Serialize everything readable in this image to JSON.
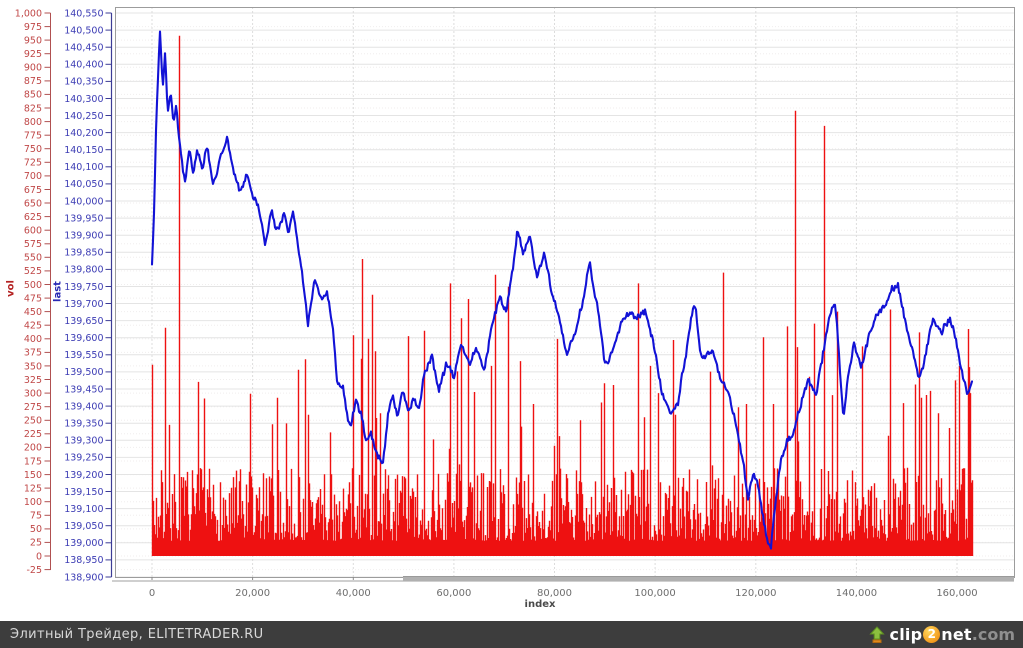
{
  "chart_data": {
    "type": "line+bar",
    "x_axis": {
      "title": "index",
      "ticks": [
        0,
        20000,
        40000,
        60000,
        80000,
        100000,
        120000,
        140000,
        160000
      ],
      "range": [
        -7300,
        171500
      ],
      "data_range": [
        0,
        163000
      ]
    },
    "left_axis_vol": {
      "title": "vol",
      "range": [
        -25,
        1000
      ],
      "ticks": [
        1000,
        975,
        950,
        925,
        900,
        875,
        850,
        825,
        800,
        775,
        750,
        725,
        700,
        675,
        650,
        625,
        600,
        575,
        550,
        525,
        500,
        475,
        450,
        425,
        400,
        375,
        350,
        325,
        300,
        275,
        250,
        225,
        200,
        175,
        150,
        125,
        100,
        75,
        50,
        25,
        0,
        -25
      ]
    },
    "left_axis_last": {
      "title": "last",
      "range": [
        138900,
        140550
      ],
      "ticks": [
        140550,
        140500,
        140450,
        140400,
        140350,
        140300,
        140250,
        140200,
        140150,
        140100,
        140050,
        140000,
        139950,
        139900,
        139850,
        139800,
        139750,
        139700,
        139650,
        139600,
        139550,
        139500,
        139450,
        139400,
        139350,
        139300,
        139250,
        139200,
        139150,
        139100,
        139050,
        139000,
        138950,
        138900
      ]
    },
    "grid": true,
    "legend": "none",
    "series": [
      {
        "name": "last",
        "type": "line",
        "color": "#1212d6",
        "axis": "last",
        "anchors": [
          [
            0,
            139820
          ],
          [
            400,
            139960
          ],
          [
            900,
            140260
          ],
          [
            1600,
            140490
          ],
          [
            2100,
            140330
          ],
          [
            2600,
            140420
          ],
          [
            3100,
            140250
          ],
          [
            3700,
            140300
          ],
          [
            4300,
            140210
          ],
          [
            4800,
            140270
          ],
          [
            5400,
            140160
          ],
          [
            6000,
            140080
          ],
          [
            6600,
            140030
          ],
          [
            7400,
            140130
          ],
          [
            8200,
            140050
          ],
          [
            9000,
            140120
          ],
          [
            10000,
            140070
          ],
          [
            11000,
            140140
          ],
          [
            12000,
            140040
          ],
          [
            13500,
            140110
          ],
          [
            14900,
            140175
          ],
          [
            16300,
            140100
          ],
          [
            17500,
            140050
          ],
          [
            18800,
            140105
          ],
          [
            20000,
            140020
          ],
          [
            21200,
            139980
          ],
          [
            22500,
            139855
          ],
          [
            23800,
            139960
          ],
          [
            25000,
            139900
          ],
          [
            26200,
            139935
          ],
          [
            27200,
            139880
          ],
          [
            28000,
            139950
          ],
          [
            29000,
            139860
          ],
          [
            29800,
            139805
          ],
          [
            31000,
            139645
          ],
          [
            32400,
            139790
          ],
          [
            33600,
            139715
          ],
          [
            34800,
            139725
          ],
          [
            36000,
            139640
          ],
          [
            36800,
            139500
          ],
          [
            38000,
            139480
          ],
          [
            38800,
            139390
          ],
          [
            39500,
            139340
          ],
          [
            40500,
            139420
          ],
          [
            41500,
            139390
          ],
          [
            42500,
            139310
          ],
          [
            43500,
            139350
          ],
          [
            44500,
            139290
          ],
          [
            45900,
            139250
          ],
          [
            46900,
            139380
          ],
          [
            47800,
            139440
          ],
          [
            48800,
            139390
          ],
          [
            49800,
            139450
          ],
          [
            50800,
            139400
          ],
          [
            52000,
            139430
          ],
          [
            53000,
            139360
          ],
          [
            54200,
            139480
          ],
          [
            55600,
            139530
          ],
          [
            57000,
            139420
          ],
          [
            58500,
            139510
          ],
          [
            60000,
            139460
          ],
          [
            61500,
            139560
          ],
          [
            63000,
            139500
          ],
          [
            64500,
            139580
          ],
          [
            66000,
            139530
          ],
          [
            67500,
            139640
          ],
          [
            69000,
            139710
          ],
          [
            70500,
            139680
          ],
          [
            71500,
            139790
          ],
          [
            72600,
            139915
          ],
          [
            73800,
            139830
          ],
          [
            75000,
            139880
          ],
          [
            76500,
            139750
          ],
          [
            78000,
            139820
          ],
          [
            79500,
            139720
          ],
          [
            81000,
            139660
          ],
          [
            82500,
            139580
          ],
          [
            84000,
            139640
          ],
          [
            85500,
            139700
          ],
          [
            87000,
            139830
          ],
          [
            88500,
            139700
          ],
          [
            90000,
            139520
          ],
          [
            91500,
            139590
          ],
          [
            93000,
            139640
          ],
          [
            94500,
            139660
          ],
          [
            96000,
            139630
          ],
          [
            98000,
            139650
          ],
          [
            100000,
            139540
          ],
          [
            101500,
            139460
          ],
          [
            103000,
            139405
          ],
          [
            104500,
            139430
          ],
          [
            106000,
            139560
          ],
          [
            107200,
            139690
          ],
          [
            108000,
            139725
          ],
          [
            109000,
            139580
          ],
          [
            110000,
            139560
          ],
          [
            111500,
            139540
          ],
          [
            113000,
            139450
          ],
          [
            114500,
            139430
          ],
          [
            116000,
            139330
          ],
          [
            117500,
            139230
          ],
          [
            118400,
            139130
          ],
          [
            119300,
            139190
          ],
          [
            120300,
            139160
          ],
          [
            121300,
            139060
          ],
          [
            122300,
            138980
          ],
          [
            123000,
            138960
          ],
          [
            123900,
            139090
          ],
          [
            125000,
            139215
          ],
          [
            126300,
            139275
          ],
          [
            127600,
            139320
          ],
          [
            129000,
            139385
          ],
          [
            130500,
            139455
          ],
          [
            132000,
            139410
          ],
          [
            133500,
            139540
          ],
          [
            135000,
            139660
          ],
          [
            135800,
            139690
          ],
          [
            136600,
            139520
          ],
          [
            137400,
            139360
          ],
          [
            138300,
            139480
          ],
          [
            139500,
            139560
          ],
          [
            141000,
            139490
          ],
          [
            142500,
            139580
          ],
          [
            144000,
            139660
          ],
          [
            145500,
            139710
          ],
          [
            147000,
            139760
          ],
          [
            148200,
            139780
          ],
          [
            149500,
            139690
          ],
          [
            151000,
            139590
          ],
          [
            152500,
            139505
          ],
          [
            154000,
            139580
          ],
          [
            155500,
            139655
          ],
          [
            157000,
            139600
          ],
          [
            158500,
            139650
          ],
          [
            159800,
            139580
          ],
          [
            161000,
            139490
          ],
          [
            162000,
            139410
          ],
          [
            162900,
            139440
          ]
        ]
      },
      {
        "name": "vol",
        "type": "bar",
        "color": "#ee1111",
        "axis": "vol",
        "baseline_range": [
          28,
          165
        ],
        "spikes": [
          [
            5400,
            958
          ],
          [
            10400,
            290
          ],
          [
            31000,
            260
          ],
          [
            35400,
            200
          ],
          [
            41750,
            547
          ],
          [
            42900,
            400
          ],
          [
            43700,
            481
          ],
          [
            44300,
            377
          ],
          [
            50800,
            405
          ],
          [
            59300,
            502
          ],
          [
            60600,
            340
          ],
          [
            61500,
            438
          ],
          [
            67300,
            350
          ],
          [
            68200,
            518
          ],
          [
            70800,
            496
          ],
          [
            73200,
            359
          ],
          [
            75800,
            280
          ],
          [
            85000,
            250
          ],
          [
            96600,
            502
          ],
          [
            100500,
            300
          ],
          [
            104000,
            260
          ],
          [
            113500,
            522
          ],
          [
            118000,
            280
          ],
          [
            121500,
            403
          ],
          [
            123500,
            280
          ],
          [
            127800,
            820
          ],
          [
            130500,
            330
          ],
          [
            133500,
            792
          ],
          [
            136100,
            450
          ],
          [
            141100,
            386
          ],
          [
            146600,
            454
          ],
          [
            154600,
            304
          ],
          [
            160300,
            350
          ],
          [
            162500,
            300
          ]
        ]
      }
    ],
    "colors": {
      "last_line": "#1212d6",
      "vol_bar": "#ee1111",
      "vol_axis_text": "#c04848",
      "last_axis_text": "#3c3cb4",
      "vol_axis_line": "#b05050",
      "last_axis_line": "#3c3c96",
      "x_axis_text": "#6e6e6e",
      "grid_major": "#e4e4e4",
      "grid_minor": "#f0eeee",
      "grid_vertical": "#dcdcdc",
      "plot_border": "#9c9c9c",
      "tick_mark_x": "#8a8a8a"
    },
    "noise": {
      "vol_seed": 7,
      "last_seed": 3,
      "last_jitter": 26
    }
  },
  "scrollbar": {
    "present": true
  },
  "footer": {
    "text": "Элитный Трейдер, ELITETRADER.RU",
    "bg": "#3d3d3d",
    "logo": {
      "icon": "upload-arrow-icon",
      "clip": "clip",
      "two": "2",
      "net": "net",
      "com": ".com",
      "circle_color": "#f29b1d",
      "arrow_green": "#86b33c",
      "arrow_orange": "#e08a1e"
    }
  }
}
